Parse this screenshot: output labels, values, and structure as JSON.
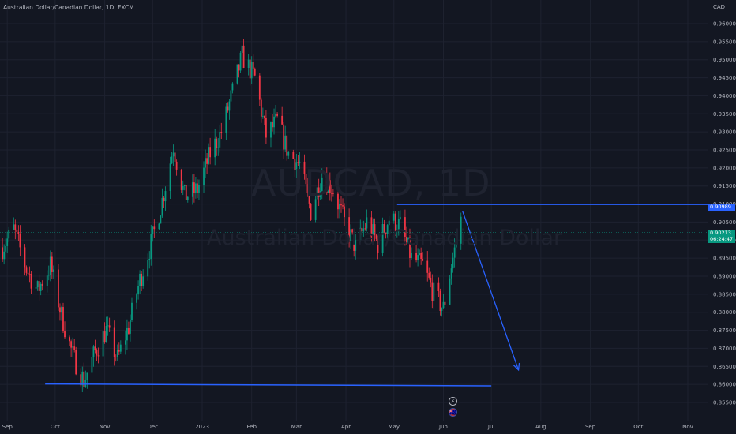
{
  "header": {
    "symbol_full": "Australian Dollar/Canadian Dollar",
    "interval": "1D",
    "exchange": "FXCM",
    "title_line": "Australian Dollar/Canadian Dollar, 1D, FXCM"
  },
  "watermark": {
    "ticker": "AUDCAD, 1D",
    "name": "Australian Dollar/Canadian Dollar"
  },
  "price_axis": {
    "currency": "CAD",
    "level_tag": "0.90989",
    "price_tag_value": "0.90213",
    "price_tag_countdown": "06:24:47"
  },
  "events": {
    "flash_icon": "⚡",
    "flag_icon": "🇦🇺"
  },
  "colors": {
    "background": "#131722",
    "up_candle": "#089981",
    "down_candle": "#f23645",
    "drawing": "#2962ff"
  },
  "chart_data": {
    "type": "candlestick",
    "y_ticks": [
      "0.96000",
      "0.95500",
      "0.95000",
      "0.94500",
      "0.94000",
      "0.93500",
      "0.93000",
      "0.92500",
      "0.92000",
      "0.91500",
      "0.91000",
      "0.90500",
      "0.90000",
      "0.89500",
      "0.89000",
      "0.88500",
      "0.88000",
      "0.87500",
      "0.87000",
      "0.86500",
      "0.86000",
      "0.85500"
    ],
    "x_ticks": [
      "Sep",
      "Oct",
      "Nov",
      "Dec",
      "2023",
      "Feb",
      "Mar",
      "Apr",
      "May",
      "Jun",
      "Jul",
      "Aug",
      "Sep",
      "Oct",
      "Nov"
    ],
    "ylim": [
      0.853,
      0.963
    ],
    "resistance_level": 0.90989,
    "support_level": 0.86,
    "last_price": 0.90213,
    "forecast_arrow": {
      "from": [
        "2023-06-13",
        0.908
      ],
      "to": [
        "2023-07-18",
        0.864
      ]
    },
    "close_path": [
      [
        "2022-08-29",
        0.898
      ],
      [
        "2022-09-05",
        0.903
      ],
      [
        "2022-09-13",
        0.892
      ],
      [
        "2022-09-20",
        0.886
      ],
      [
        "2022-09-28",
        0.893
      ],
      [
        "2022-10-05",
        0.879
      ],
      [
        "2022-10-12",
        0.868
      ],
      [
        "2022-10-19",
        0.861
      ],
      [
        "2022-10-26",
        0.869
      ],
      [
        "2022-11-02",
        0.875
      ],
      [
        "2022-11-09",
        0.867
      ],
      [
        "2022-11-16",
        0.876
      ],
      [
        "2022-11-23",
        0.889
      ],
      [
        "2022-11-30",
        0.899
      ],
      [
        "2022-12-07",
        0.911
      ],
      [
        "2022-12-14",
        0.926
      ],
      [
        "2022-12-21",
        0.912
      ],
      [
        "2022-12-29",
        0.914
      ],
      [
        "2023-01-06",
        0.924
      ],
      [
        "2023-01-13",
        0.93
      ],
      [
        "2023-01-20",
        0.941
      ],
      [
        "2023-01-26",
        0.951
      ],
      [
        "2023-02-03",
        0.945
      ],
      [
        "2023-02-10",
        0.929
      ],
      [
        "2023-02-17",
        0.933
      ],
      [
        "2023-02-24",
        0.924
      ],
      [
        "2023-03-03",
        0.921
      ],
      [
        "2023-03-10",
        0.908
      ],
      [
        "2023-03-17",
        0.918
      ],
      [
        "2023-03-24",
        0.914
      ],
      [
        "2023-03-31",
        0.905
      ],
      [
        "2023-04-07",
        0.898
      ],
      [
        "2023-04-14",
        0.905
      ],
      [
        "2023-04-21",
        0.899
      ],
      [
        "2023-04-28",
        0.906
      ],
      [
        "2023-05-05",
        0.904
      ],
      [
        "2023-05-12",
        0.895
      ],
      [
        "2023-05-19",
        0.893
      ],
      [
        "2023-05-26",
        0.885
      ],
      [
        "2023-06-01",
        0.881
      ],
      [
        "2023-06-06",
        0.893
      ],
      [
        "2023-06-12",
        0.9055
      ]
    ]
  }
}
